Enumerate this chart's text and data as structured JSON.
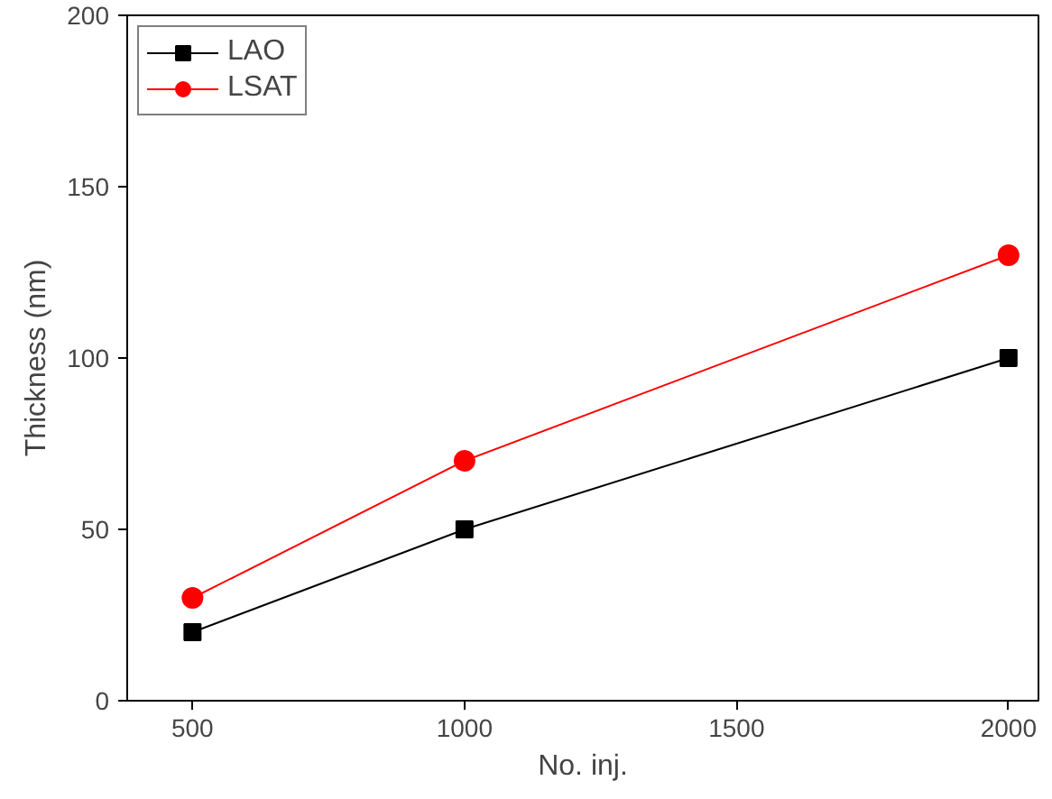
{
  "chart_data": {
    "type": "line",
    "xlabel": "No. inj.",
    "ylabel": "Thickness (nm)",
    "x": [
      500,
      1000,
      2000
    ],
    "series": [
      {
        "name": "LAO",
        "color": "#000000",
        "values": [
          20,
          50,
          100
        ],
        "marker": "square"
      },
      {
        "name": "LSAT",
        "color": "#ff0000",
        "values": [
          30,
          70,
          130
        ],
        "marker": "circle"
      }
    ],
    "xlim": [
      380,
      2055
    ],
    "ylim": [
      0,
      200
    ],
    "xticks": [
      500,
      1000,
      1500,
      2000
    ],
    "yticks": [
      0,
      50,
      100,
      150,
      200
    ],
    "legend": "top left",
    "grid": false,
    "line_style": "solid"
  }
}
